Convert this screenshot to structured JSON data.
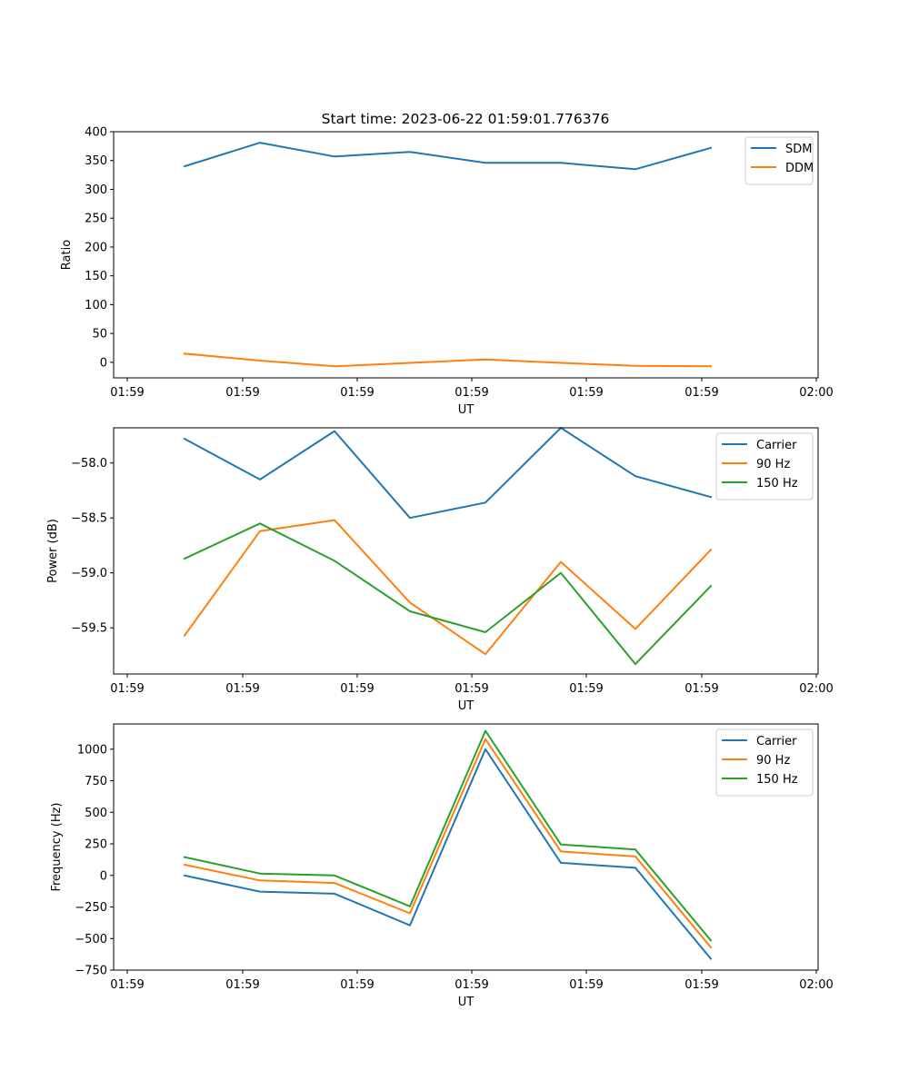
{
  "figure": {
    "title": "Start time: 2023-06-22 01:59:01.776376"
  },
  "chart_data": [
    {
      "type": "line",
      "title": "Start time: 2023-06-22 01:59:01.776376",
      "xlabel": "UT",
      "ylabel": "Ratio",
      "ylim": [
        -27,
        400
      ],
      "yticks": [
        0,
        50,
        100,
        150,
        200,
        250,
        300,
        350,
        400
      ],
      "ytick_labels": [
        "0",
        "50",
        "100",
        "150",
        "200",
        "250",
        "300",
        "350",
        "400"
      ],
      "xtick_labels": [
        "01:59",
        "01:59",
        "01:59",
        "01:59",
        "01:59",
        "01:59",
        "02:00"
      ],
      "legend_position": "upper right",
      "grid": false,
      "series": [
        {
          "name": "SDM",
          "color": "#1f77b4",
          "values": [
            340,
            381,
            357,
            365,
            346,
            346,
            335,
            372
          ]
        },
        {
          "name": "DDM",
          "color": "#ff7f0e",
          "values": [
            15,
            3,
            -7,
            -1,
            5,
            -1,
            -6,
            -7
          ]
        }
      ]
    },
    {
      "type": "line",
      "title": "",
      "xlabel": "UT",
      "ylabel": "Power (dB)",
      "ylim": [
        -59.92,
        -57.68
      ],
      "yticks": [
        -59.5,
        -59.0,
        -58.5,
        -58.0
      ],
      "ytick_labels": [
        "−59.5",
        "−59.0",
        "−58.5",
        "−58.0"
      ],
      "xtick_labels": [
        "01:59",
        "01:59",
        "01:59",
        "01:59",
        "01:59",
        "01:59",
        "02:00"
      ],
      "legend_position": "upper right",
      "grid": false,
      "series": [
        {
          "name": "Carrier",
          "color": "#1f77b4",
          "values": [
            -57.78,
            -58.15,
            -57.71,
            -58.5,
            -58.36,
            -57.68,
            -58.12,
            -58.31
          ]
        },
        {
          "name": "90 Hz",
          "color": "#ff7f0e",
          "values": [
            -59.57,
            -58.62,
            -58.52,
            -59.27,
            -59.74,
            -58.9,
            -59.51,
            -58.79
          ]
        },
        {
          "name": "150 Hz",
          "color": "#2ca02c",
          "values": [
            -58.87,
            -58.55,
            -58.89,
            -59.35,
            -59.54,
            -59.0,
            -59.83,
            -59.12
          ]
        }
      ]
    },
    {
      "type": "line",
      "title": "",
      "xlabel": "UT",
      "ylabel": "Frequency (Hz)",
      "ylim": [
        -750,
        1200
      ],
      "yticks": [
        -750,
        -500,
        -250,
        0,
        250,
        500,
        750,
        1000
      ],
      "ytick_labels": [
        "−750",
        "−500",
        "−250",
        "0",
        "250",
        "500",
        "750",
        "1000"
      ],
      "xtick_labels": [
        "01:59",
        "01:59",
        "01:59",
        "01:59",
        "01:59",
        "01:59",
        "02:00"
      ],
      "legend_position": "upper right",
      "grid": false,
      "series": [
        {
          "name": "Carrier",
          "color": "#1f77b4",
          "values": [
            0,
            -128,
            -145,
            -395,
            1000,
            100,
            60,
            -660
          ]
        },
        {
          "name": "90 Hz",
          "color": "#ff7f0e",
          "values": [
            85,
            -40,
            -60,
            -300,
            1080,
            190,
            150,
            -570
          ]
        },
        {
          "name": "150 Hz",
          "color": "#2ca02c",
          "values": [
            145,
            15,
            0,
            -245,
            1145,
            245,
            205,
            -515
          ]
        }
      ]
    }
  ]
}
